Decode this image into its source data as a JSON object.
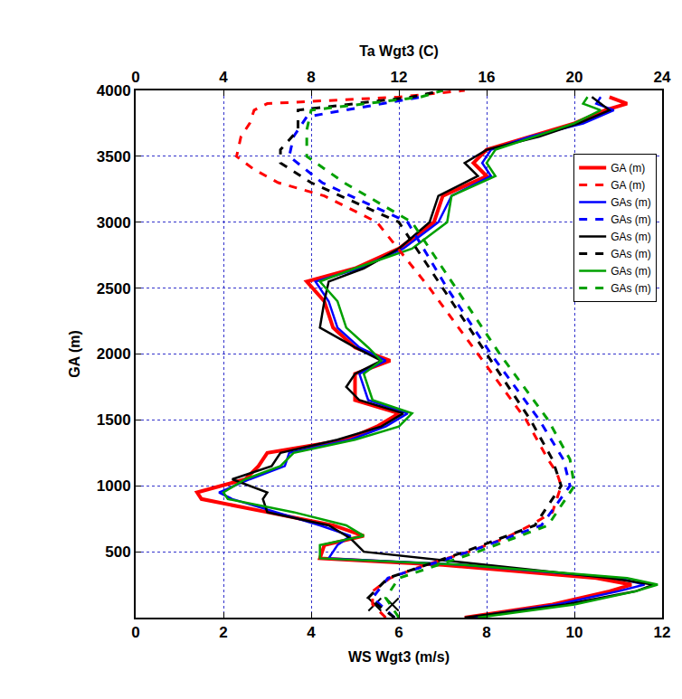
{
  "chart_data": {
    "type": "line",
    "xlabel": "WS Wgt3 (m/s)",
    "x2label": "Ta Wgt3 (C)",
    "ylabel": "GA (m)",
    "xlim": [
      0,
      12
    ],
    "xticks": [
      0,
      2,
      4,
      6,
      8,
      10,
      12
    ],
    "x2lim": [
      0,
      24
    ],
    "x2ticks": [
      0,
      4,
      8,
      12,
      16,
      20,
      24
    ],
    "ylim": [
      0,
      4000
    ],
    "yticks": [
      500,
      1000,
      1500,
      2000,
      2500,
      3000,
      3500,
      4000
    ],
    "grid": true,
    "legend": "upper right",
    "series": [
      {
        "name": "GA (m)",
        "color": "#ff0000",
        "line_style": "solid",
        "y": [
          0,
          100,
          200,
          250,
          300,
          400,
          450,
          550,
          620,
          700,
          800,
          900,
          950,
          1050,
          1150,
          1250,
          1350,
          1450,
          1550,
          1650,
          1850,
          1950,
          2050,
          2200,
          2400,
          2550,
          2650,
          2800,
          3000,
          3200,
          3350,
          3450,
          3550,
          3650,
          3750,
          3850,
          3900,
          3950
        ],
        "x": [
          7.5,
          9.5,
          10.8,
          11.3,
          10.5,
          7,
          4.2,
          4.3,
          5.2,
          4.5,
          3,
          1.5,
          1.4,
          2.5,
          2.8,
          3,
          4.8,
          5.5,
          6,
          5,
          5,
          5.8,
          5,
          4.5,
          4.3,
          3.9,
          5,
          6,
          6.8,
          7,
          8,
          7.7,
          8,
          9,
          10,
          10.7,
          11.2,
          10.8
        ]
      },
      {
        "name": "GA (m)",
        "color": "#ff0000",
        "line_style": "dash",
        "axis": "x2",
        "y": [
          0,
          100,
          200,
          300,
          400,
          500,
          600,
          700,
          800,
          900,
          1000,
          1100,
          1200,
          1500,
          2000,
          2500,
          3000,
          3200,
          3300,
          3400,
          3500,
          3650,
          3750,
          3850,
          3900,
          3950,
          4000
        ],
        "x": [
          11.4,
          10.8,
          10.8,
          11.6,
          13.2,
          15.2,
          16.8,
          18,
          19,
          19.2,
          19.4,
          19.2,
          18.8,
          17.8,
          15.6,
          13.4,
          11,
          8.6,
          6.5,
          5.4,
          4.6,
          4.8,
          5.2,
          5.4,
          6,
          12,
          15
        ]
      },
      {
        "name": "GAs (m)",
        "color": "#0000ff",
        "line_style": "solid",
        "y": [
          0,
          100,
          200,
          250,
          300,
          400,
          450,
          550,
          620,
          700,
          800,
          900,
          950,
          1050,
          1150,
          1250,
          1350,
          1450,
          1550,
          1650,
          1850,
          1950,
          2050,
          2200,
          2400,
          2550,
          2650,
          2800,
          3000,
          3200,
          3350,
          3450,
          3550,
          3650,
          3750,
          3850,
          3900,
          3950
        ],
        "x": [
          7.6,
          9.6,
          11,
          11.6,
          11,
          7.5,
          4.4,
          4.6,
          4.9,
          4.2,
          3.2,
          2.2,
          1.9,
          2.6,
          3.4,
          3.5,
          4.9,
          5.7,
          6.2,
          5.3,
          5.1,
          5.7,
          5.1,
          4.6,
          4.4,
          4.1,
          5.1,
          6.1,
          6.9,
          7.2,
          8.1,
          7.9,
          8.1,
          9,
          10.2,
          10.9,
          10.5,
          10.6
        ]
      },
      {
        "name": "GAs (m)",
        "color": "#0000ff",
        "line_style": "dash",
        "axis": "x2",
        "y": [
          0,
          150,
          300,
          500,
          700,
          1000,
          1200,
          1500,
          2000,
          2500,
          3000,
          3300,
          3500,
          3650,
          3800,
          3950
        ],
        "x": [
          11.8,
          10.8,
          11.5,
          15.2,
          18.5,
          19.8,
          19.5,
          18.4,
          16.2,
          14.2,
          12.4,
          8.5,
          7,
          7.2,
          7.8,
          13
        ]
      },
      {
        "name": "GAs (m)",
        "color": "#000000",
        "line_style": "solid",
        "y": [
          0,
          100,
          200,
          250,
          300,
          400,
          500,
          600,
          700,
          800,
          900,
          950,
          1050,
          1150,
          1250,
          1350,
          1450,
          1550,
          1650,
          1750,
          1850,
          1950,
          2050,
          2200,
          2400,
          2550,
          2650,
          2800,
          3000,
          3200,
          3350,
          3450,
          3550,
          3650,
          3750,
          3850,
          3900,
          3950
        ],
        "x": [
          7.5,
          9.8,
          11.4,
          11.8,
          10.8,
          8,
          5.2,
          4.9,
          4.4,
          3,
          2.9,
          3,
          2.2,
          3.1,
          3.3,
          4.6,
          5.6,
          6.1,
          5.1,
          4.8,
          5,
          5.6,
          5,
          4.2,
          4.3,
          4.4,
          5.2,
          6,
          6.7,
          6.9,
          7.8,
          7.5,
          8,
          9.2,
          10.1,
          10.8,
          10.6,
          10.4
        ]
      },
      {
        "name": "GAs (m)",
        "color": "#000000",
        "line_style": "dash",
        "axis": "x2",
        "y": [
          0,
          150,
          300,
          500,
          700,
          1000,
          1200,
          1500,
          2000,
          2500,
          3000,
          3300,
          3450,
          3550,
          3700,
          3850,
          3950,
          4000
        ],
        "x": [
          11.8,
          10.6,
          11.5,
          15,
          18.2,
          19.4,
          19,
          18,
          16,
          14,
          12,
          8,
          6.6,
          6.6,
          7.4,
          7.4,
          12.6,
          14
        ]
      },
      {
        "name": "GAs (m)",
        "color": "#00a000",
        "line_style": "solid",
        "y": [
          0,
          100,
          200,
          250,
          300,
          400,
          450,
          550,
          620,
          700,
          800,
          900,
          950,
          1050,
          1150,
          1250,
          1350,
          1450,
          1550,
          1650,
          1850,
          1950,
          2050,
          2200,
          2400,
          2550,
          2650,
          2800,
          3000,
          3200,
          3350,
          3450,
          3550,
          3650,
          3750,
          3850,
          3900,
          3950
        ],
        "x": [
          7.8,
          10,
          11.4,
          11.9,
          11.2,
          7.5,
          4.2,
          4.2,
          5.2,
          4.8,
          3.6,
          2.1,
          2,
          2.5,
          3.3,
          3.6,
          5,
          6,
          6.3,
          5.4,
          5.2,
          5.6,
          5.3,
          4.8,
          4.6,
          4.2,
          5,
          6.3,
          7.1,
          7.2,
          8.2,
          8,
          8.2,
          9.1,
          10,
          10.6,
          10.2,
          10.3
        ]
      },
      {
        "name": "GAs (m)",
        "color": "#00a000",
        "line_style": "dash",
        "axis": "x2",
        "y": [
          0,
          150,
          300,
          500,
          700,
          1000,
          1200,
          1500,
          2000,
          2500,
          3000,
          3300,
          3500,
          3700,
          3850,
          3950,
          4000
        ],
        "x": [
          12,
          11.4,
          12,
          15.6,
          18.8,
          20,
          19.8,
          18.8,
          16.6,
          14.6,
          12.6,
          9.5,
          7.8,
          7.8,
          8,
          13,
          14
        ]
      },
      {
        "type": "scatter",
        "marker": "x",
        "color": "#000000",
        "y": [
          100,
          100
        ],
        "x": [
          5.45,
          5.85
        ]
      }
    ]
  }
}
